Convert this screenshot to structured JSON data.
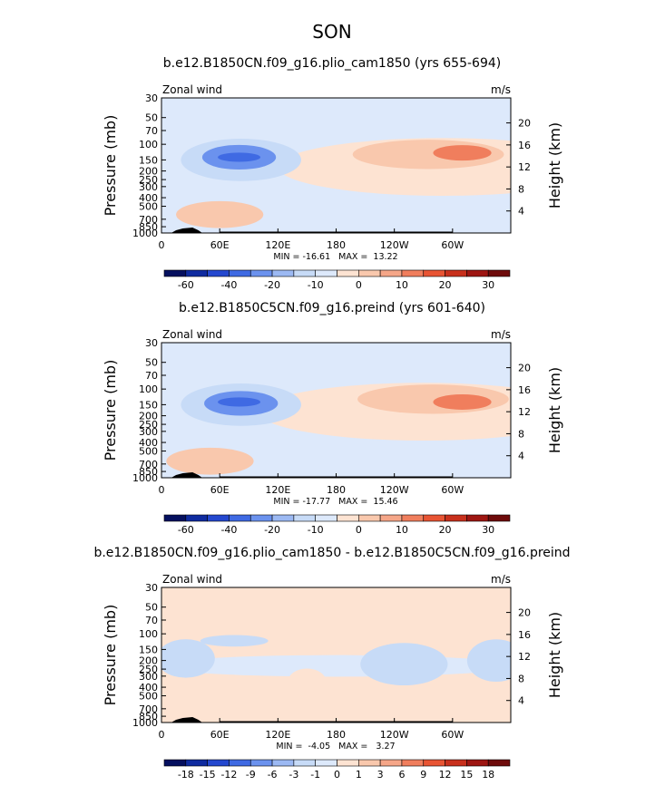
{
  "page_title": "SON",
  "chart_data": [
    {
      "type": "heatmap",
      "title": "b.e12.B1850CN.f09_g16.plio_cam1850 (yrs 655-694)",
      "left_label": "Zonal wind",
      "right_label": "m/s",
      "xlabel": "",
      "ylabel": "Pressure (mb)",
      "y2label": "Height (km)",
      "xticks": [
        "0",
        "60E",
        "120E",
        "180",
        "120W",
        "60W"
      ],
      "xtick_lon": [
        0,
        60,
        120,
        180,
        240,
        300
      ],
      "xlim": [
        0,
        360
      ],
      "yticks": [
        "30",
        "50",
        "70",
        "100",
        "150",
        "200",
        "250",
        "300",
        "400",
        "500",
        "700",
        "850",
        "1000"
      ],
      "ytick_p": [
        30,
        50,
        70,
        100,
        150,
        200,
        250,
        300,
        400,
        500,
        700,
        850,
        1000
      ],
      "ylim": [
        1000,
        30
      ],
      "y2ticks": [
        "20",
        "16",
        "12",
        "8",
        "4"
      ],
      "y2tick_km": [
        20,
        16,
        12,
        8,
        4
      ],
      "stats": "MIN = -16.61   MAX =  13.22",
      "colorbar": {
        "labels": [
          "-60",
          "-40",
          "-20",
          "-10",
          "0",
          "10",
          "20",
          "30"
        ],
        "levels": [
          -60,
          -50,
          -40,
          -30,
          -20,
          -15,
          -10,
          -5,
          0,
          5,
          10,
          15,
          20,
          25,
          30
        ],
        "label_levels": [
          -60,
          -40,
          -20,
          -10,
          0,
          10,
          20,
          30
        ],
        "colors": [
          "#05105f",
          "#0f2ba0",
          "#2448cf",
          "#3f6ae3",
          "#6b92ee",
          "#9cb9f3",
          "#c7dbf7",
          "#dde9fb",
          "#fde3d2",
          "#f9c8ad",
          "#f5a688",
          "#f07e5d",
          "#e85433",
          "#c8301c",
          "#9e1612",
          "#6e0b0b"
        ]
      },
      "background_color": "#dde9fb",
      "features": [
        {
          "name": "easterly-core",
          "lon": 80,
          "p": 140,
          "value": -16.61,
          "color": "#3f6ae3"
        },
        {
          "name": "easterly-ring",
          "lon": 80,
          "p": 140,
          "value": -12,
          "color": "#6b92ee"
        },
        {
          "name": "easterly-halo",
          "lon": 82,
          "p": 150,
          "value": -8,
          "color": "#c7dbf7"
        },
        {
          "name": "westerly-jet-band",
          "lon": 290,
          "p": 180,
          "value": 2,
          "color": "#fde3d2"
        },
        {
          "name": "westerly-jet-mid",
          "lon": 275,
          "p": 130,
          "value": 7,
          "color": "#f9c8ad"
        },
        {
          "name": "westerly-jet-core",
          "lon": 310,
          "p": 125,
          "value": 13.22,
          "color": "#f07e5d"
        },
        {
          "name": "surface-westerly",
          "lon": 60,
          "p": 620,
          "value": 4,
          "color": "#f9c8ad"
        }
      ]
    },
    {
      "type": "heatmap",
      "title": "b.e12.B1850C5CN.f09_g16.preind (yrs 601-640)",
      "left_label": "Zonal wind",
      "right_label": "m/s",
      "xlabel": "",
      "ylabel": "Pressure (mb)",
      "y2label": "Height (km)",
      "xticks": [
        "0",
        "60E",
        "120E",
        "180",
        "120W",
        "60W"
      ],
      "xtick_lon": [
        0,
        60,
        120,
        180,
        240,
        300
      ],
      "xlim": [
        0,
        360
      ],
      "yticks": [
        "30",
        "50",
        "70",
        "100",
        "150",
        "200",
        "250",
        "300",
        "400",
        "500",
        "700",
        "850",
        "1000"
      ],
      "ytick_p": [
        30,
        50,
        70,
        100,
        150,
        200,
        250,
        300,
        400,
        500,
        700,
        850,
        1000
      ],
      "ylim": [
        1000,
        30
      ],
      "y2ticks": [
        "20",
        "16",
        "12",
        "8",
        "4"
      ],
      "y2tick_km": [
        20,
        16,
        12,
        8,
        4
      ],
      "stats": "MIN = -17.77   MAX =  15.46",
      "colorbar": {
        "labels": [
          "-60",
          "-40",
          "-20",
          "-10",
          "0",
          "10",
          "20",
          "30"
        ],
        "levels": [
          -60,
          -50,
          -40,
          -30,
          -20,
          -15,
          -10,
          -5,
          0,
          5,
          10,
          15,
          20,
          25,
          30
        ],
        "label_levels": [
          -60,
          -40,
          -20,
          -10,
          0,
          10,
          20,
          30
        ],
        "colors": [
          "#05105f",
          "#0f2ba0",
          "#2448cf",
          "#3f6ae3",
          "#6b92ee",
          "#9cb9f3",
          "#c7dbf7",
          "#dde9fb",
          "#fde3d2",
          "#f9c8ad",
          "#f5a688",
          "#f07e5d",
          "#e85433",
          "#c8301c",
          "#9e1612",
          "#6e0b0b"
        ]
      },
      "background_color": "#dde9fb",
      "features": [
        {
          "name": "easterly-core",
          "lon": 80,
          "p": 140,
          "value": -17.77,
          "color": "#3f6ae3"
        },
        {
          "name": "easterly-ring",
          "lon": 82,
          "p": 145,
          "value": -12,
          "color": "#6b92ee"
        },
        {
          "name": "easterly-halo",
          "lon": 82,
          "p": 150,
          "value": -8,
          "color": "#c7dbf7"
        },
        {
          "name": "westerly-jet-band",
          "lon": 270,
          "p": 180,
          "value": 2,
          "color": "#fde3d2"
        },
        {
          "name": "westerly-jet-mid",
          "lon": 280,
          "p": 130,
          "value": 8,
          "color": "#f9c8ad"
        },
        {
          "name": "westerly-jet-core",
          "lon": 310,
          "p": 140,
          "value": 15.46,
          "color": "#f07e5d"
        },
        {
          "name": "surface-westerly",
          "lon": 50,
          "p": 650,
          "value": 4,
          "color": "#f9c8ad"
        }
      ]
    },
    {
      "type": "heatmap",
      "title": "b.e12.B1850CN.f09_g16.plio_cam1850 - b.e12.B1850C5CN.f09_g16.preind",
      "left_label": "Zonal wind",
      "right_label": "m/s",
      "xlabel": "",
      "ylabel": "Pressure (mb)",
      "y2label": "Height (km)",
      "xticks": [
        "0",
        "60E",
        "120E",
        "180",
        "120W",
        "60W"
      ],
      "xtick_lon": [
        0,
        60,
        120,
        180,
        240,
        300
      ],
      "xlim": [
        0,
        360
      ],
      "yticks": [
        "30",
        "50",
        "70",
        "100",
        "150",
        "200",
        "250",
        "300",
        "400",
        "500",
        "700",
        "850",
        "1000"
      ],
      "ytick_p": [
        30,
        50,
        70,
        100,
        150,
        200,
        250,
        300,
        400,
        500,
        700,
        850,
        1000
      ],
      "ylim": [
        1000,
        30
      ],
      "y2ticks": [
        "20",
        "16",
        "12",
        "8",
        "4"
      ],
      "y2tick_km": [
        20,
        16,
        12,
        8,
        4
      ],
      "stats": "MIN =  -4.05   MAX =   3.27",
      "colorbar": {
        "labels": [
          "-18",
          "-15",
          "-12",
          "-9",
          "-6",
          "-3",
          "-1",
          "0",
          "1",
          "3",
          "6",
          "9",
          "12",
          "15",
          "18"
        ],
        "levels": [
          -18,
          -15,
          -12,
          -9,
          -6,
          -3,
          -1,
          0,
          1,
          3,
          6,
          9,
          12,
          15,
          18
        ],
        "label_levels": [
          -18,
          -15,
          -12,
          -9,
          -6,
          -3,
          -1,
          0,
          1,
          3,
          6,
          9,
          12,
          15,
          18
        ],
        "colors": [
          "#05105f",
          "#0f2ba0",
          "#2448cf",
          "#3f6ae3",
          "#6b92ee",
          "#9cb9f3",
          "#c7dbf7",
          "#dde9fb",
          "#fde3d2",
          "#f9c8ad",
          "#f5a688",
          "#f07e5d",
          "#e85433",
          "#c8301c",
          "#9e1612",
          "#6e0b0b"
        ]
      },
      "background_color": "#fde3d2",
      "features": [
        {
          "name": "negative-band",
          "lon": 180,
          "p": 230,
          "value": -1.5,
          "color": "#dde9fb"
        },
        {
          "name": "negative-west",
          "lon": 25,
          "p": 190,
          "value": -2.5,
          "color": "#c7dbf7"
        },
        {
          "name": "negative-east",
          "lon": 345,
          "p": 200,
          "value": -4.05,
          "color": "#c7dbf7"
        },
        {
          "name": "negative-center",
          "lon": 250,
          "p": 220,
          "value": -2,
          "color": "#c7dbf7"
        },
        {
          "name": "negative-asia",
          "lon": 75,
          "p": 120,
          "value": -2,
          "color": "#c7dbf7"
        },
        {
          "name": "positive-upper",
          "lon": 190,
          "p": 85,
          "value": 1.5,
          "color": "#fde3d2"
        },
        {
          "name": "positive-south",
          "lon": 150,
          "p": 350,
          "value": 3.27,
          "color": "#fde3d2"
        }
      ]
    }
  ]
}
